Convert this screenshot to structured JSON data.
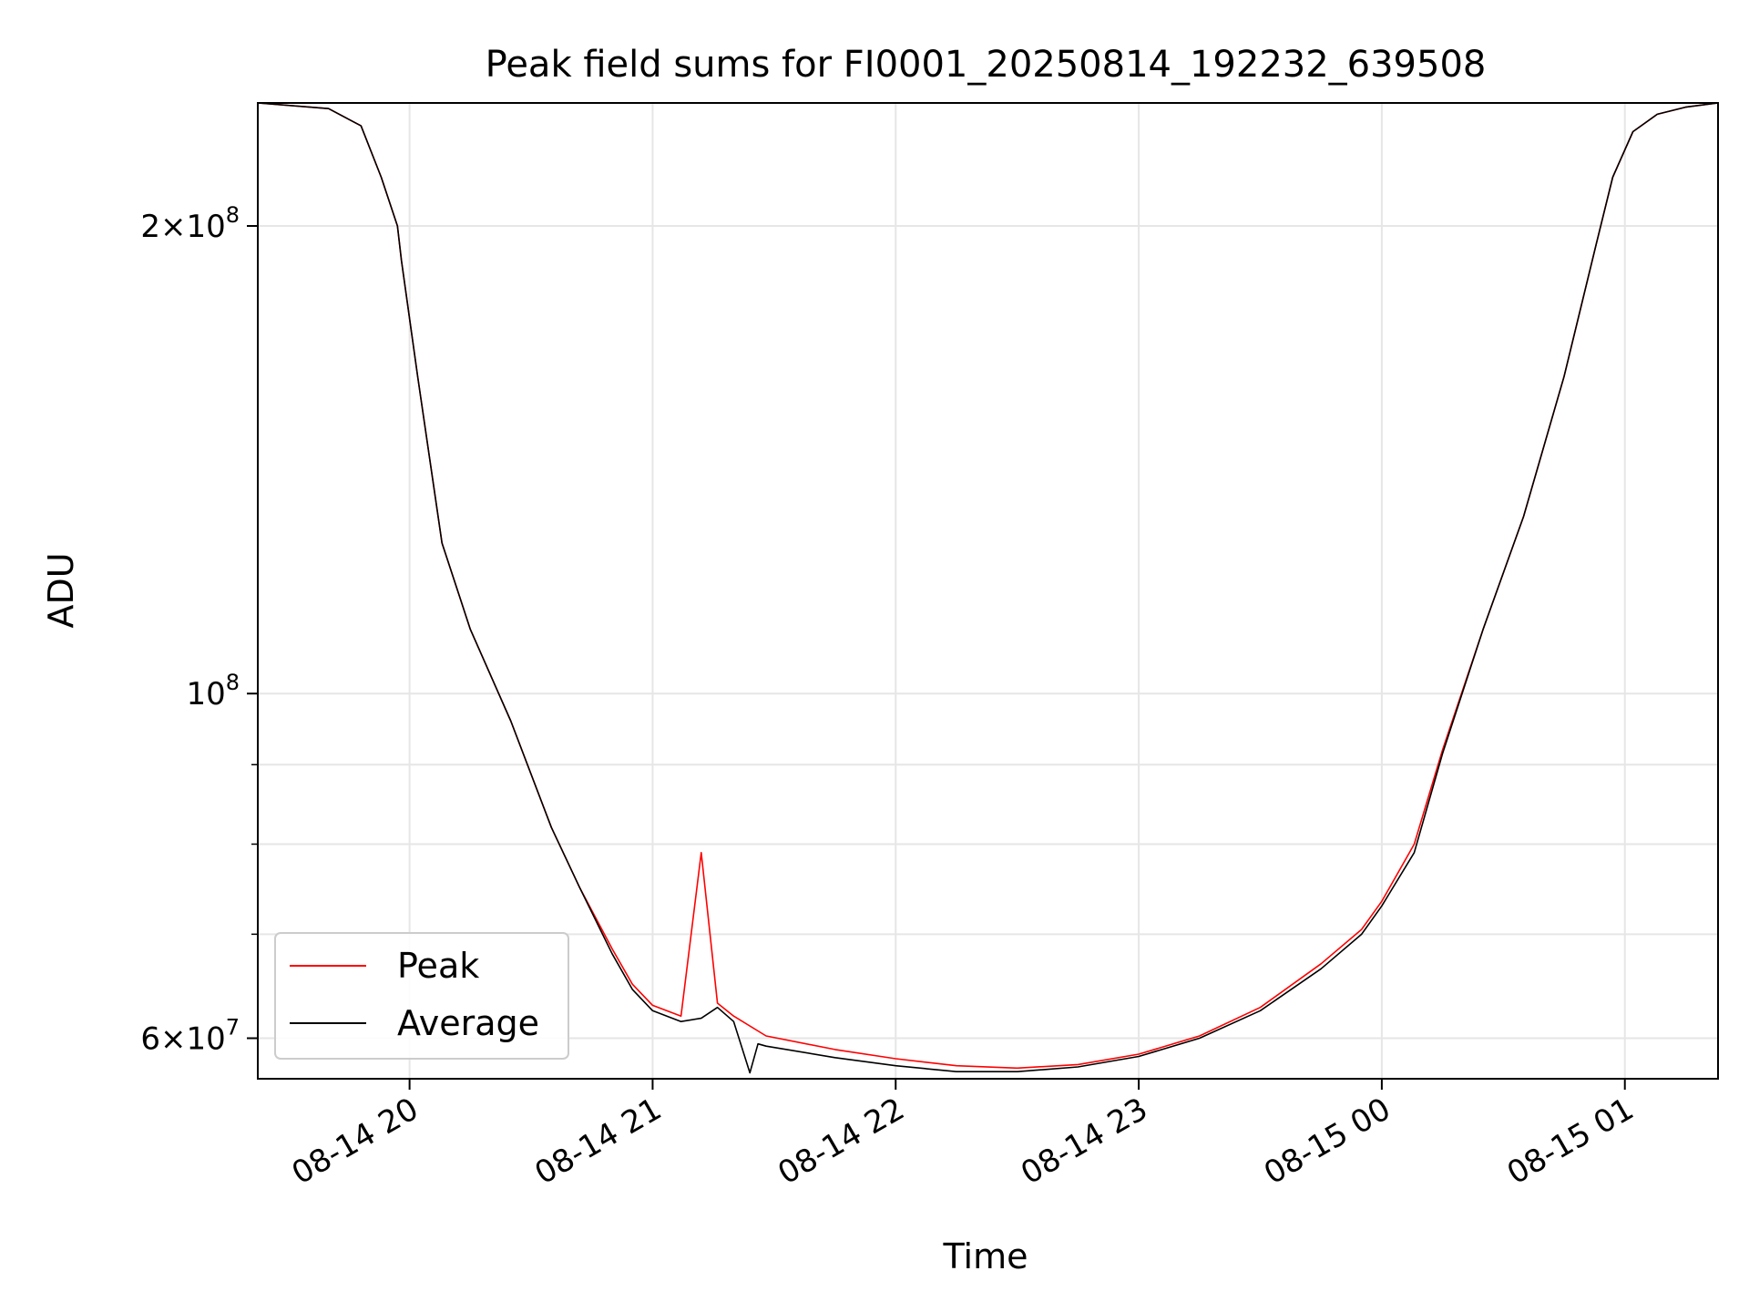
{
  "chart_data": {
    "type": "line",
    "title": "Peak field sums for FI0001_20250814_192232_639508",
    "xlabel": "Time",
    "ylabel": "ADU",
    "y_scale": "log",
    "xlim": [
      "2025-08-14T19:22:32",
      "2025-08-15T01:23:00"
    ],
    "ylim": [
      56500000,
      240000000
    ],
    "grid": true,
    "legend_position": "lower-left",
    "x_ticks": [
      {
        "value": "2025-08-14T20:00:00",
        "label": "08-14 20"
      },
      {
        "value": "2025-08-14T21:00:00",
        "label": "08-14 21"
      },
      {
        "value": "2025-08-14T22:00:00",
        "label": "08-14 22"
      },
      {
        "value": "2025-08-14T23:00:00",
        "label": "08-14 23"
      },
      {
        "value": "2025-08-15T00:00:00",
        "label": "08-15 00"
      },
      {
        "value": "2025-08-15T01:00:00",
        "label": "08-15 01"
      }
    ],
    "y_ticks_major": [
      {
        "value": 60000000,
        "mantissa": "6",
        "base": "10",
        "exponent": "7"
      },
      {
        "value": 100000000,
        "mantissa": "",
        "base": "10",
        "exponent": "8"
      },
      {
        "value": 200000000,
        "mantissa": "2",
        "base": "10",
        "exponent": "8"
      }
    ],
    "y_ticks_minor": [
      70000000,
      80000000,
      90000000
    ],
    "series": [
      {
        "name": "Peak",
        "color": "#ff0000",
        "x": [
          "2025-08-14T19:22:32",
          "2025-08-14T19:40:00",
          "2025-08-14T19:48:00",
          "2025-08-14T19:53:00",
          "2025-08-14T19:57:00",
          "2025-08-14T19:58:00",
          "2025-08-14T20:02:00",
          "2025-08-14T20:08:00",
          "2025-08-14T20:15:00",
          "2025-08-14T20:25:00",
          "2025-08-14T20:35:00",
          "2025-08-14T20:42:00",
          "2025-08-14T20:50:00",
          "2025-08-14T20:55:00",
          "2025-08-14T21:00:00",
          "2025-08-14T21:07:00",
          "2025-08-14T21:12:00",
          "2025-08-14T21:16:00",
          "2025-08-14T21:20:00",
          "2025-08-14T21:28:00",
          "2025-08-14T21:45:00",
          "2025-08-14T22:00:00",
          "2025-08-14T22:15:00",
          "2025-08-14T22:30:00",
          "2025-08-14T22:45:00",
          "2025-08-14T23:00:00",
          "2025-08-14T23:15:00",
          "2025-08-14T23:30:00",
          "2025-08-14T23:45:00",
          "2025-08-14T23:55:00",
          "2025-08-15T00:00:00",
          "2025-08-15T00:08:00",
          "2025-08-15T00:15:00",
          "2025-08-15T00:25:00",
          "2025-08-15T00:35:00",
          "2025-08-15T00:45:00",
          "2025-08-15T00:53:00",
          "2025-08-15T00:57:00",
          "2025-08-15T01:02:00",
          "2025-08-15T01:08:00",
          "2025-08-15T01:15:00",
          "2025-08-15T01:23:00"
        ],
        "y": [
          240000000,
          238000000,
          232000000,
          215000000,
          200000000,
          190000000,
          160000000,
          125000000,
          110000000,
          96000000,
          82000000,
          75000000,
          68500000,
          65000000,
          63000000,
          62000000,
          79000000,
          63200000,
          62000000,
          60200000,
          59000000,
          58200000,
          57600000,
          57400000,
          57700000,
          58600000,
          60200000,
          62800000,
          67000000,
          70500000,
          73500000,
          80000000,
          92000000,
          110000000,
          130000000,
          160000000,
          195000000,
          215000000,
          230000000,
          236000000,
          238500000,
          240000000
        ]
      },
      {
        "name": "Average",
        "color": "#000000",
        "x": [
          "2025-08-14T19:22:32",
          "2025-08-14T19:40:00",
          "2025-08-14T19:48:00",
          "2025-08-14T19:53:00",
          "2025-08-14T19:57:00",
          "2025-08-14T19:58:00",
          "2025-08-14T20:02:00",
          "2025-08-14T20:08:00",
          "2025-08-14T20:15:00",
          "2025-08-14T20:25:00",
          "2025-08-14T20:35:00",
          "2025-08-14T20:42:00",
          "2025-08-14T20:50:00",
          "2025-08-14T20:55:00",
          "2025-08-14T21:00:00",
          "2025-08-14T21:07:00",
          "2025-08-14T21:12:00",
          "2025-08-14T21:16:00",
          "2025-08-14T21:20:00",
          "2025-08-14T21:24:00",
          "2025-08-14T21:26:00",
          "2025-08-14T21:28:00",
          "2025-08-14T21:45:00",
          "2025-08-14T22:00:00",
          "2025-08-14T22:15:00",
          "2025-08-14T22:30:00",
          "2025-08-14T22:45:00",
          "2025-08-14T23:00:00",
          "2025-08-14T23:15:00",
          "2025-08-14T23:30:00",
          "2025-08-14T23:45:00",
          "2025-08-14T23:55:00",
          "2025-08-15T00:00:00",
          "2025-08-15T00:08:00",
          "2025-08-15T00:15:00",
          "2025-08-15T00:25:00",
          "2025-08-15T00:35:00",
          "2025-08-15T00:45:00",
          "2025-08-15T00:53:00",
          "2025-08-15T00:57:00",
          "2025-08-15T01:02:00",
          "2025-08-15T01:08:00",
          "2025-08-15T01:15:00",
          "2025-08-15T01:23:00"
        ],
        "y": [
          240000000,
          238000000,
          232000000,
          215000000,
          200000000,
          190000000,
          160000000,
          125000000,
          110000000,
          96000000,
          82000000,
          75000000,
          68000000,
          64500000,
          62500000,
          61500000,
          61800000,
          62800000,
          61500000,
          57000000,
          59500000,
          59300000,
          58300000,
          57600000,
          57100000,
          57100000,
          57500000,
          58400000,
          60000000,
          62500000,
          66500000,
          70000000,
          73000000,
          79000000,
          91500000,
          110000000,
          130000000,
          160000000,
          195000000,
          215000000,
          230000000,
          236000000,
          238500000,
          240000000
        ]
      }
    ]
  }
}
